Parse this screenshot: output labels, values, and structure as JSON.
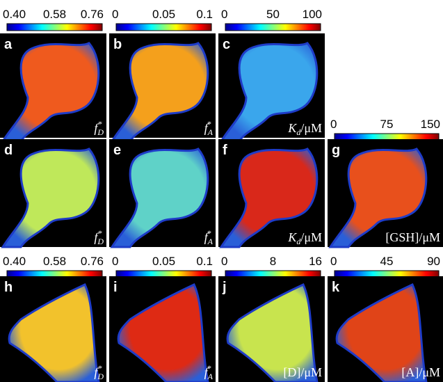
{
  "colorbars": [
    {
      "ticks": [
        "0.40",
        "0.58",
        "0.76"
      ]
    },
    {
      "ticks": [
        "0",
        "0.05",
        "0.1"
      ]
    },
    {
      "ticks": [
        "0",
        "50",
        "100"
      ]
    },
    {
      "ticks": [
        "0",
        "75",
        "150"
      ]
    },
    {
      "ticks": [
        "0.40",
        "0.58",
        "0.76"
      ]
    },
    {
      "ticks": [
        "0",
        "0.05",
        "0.1"
      ]
    },
    {
      "ticks": [
        "0",
        "8",
        "16"
      ]
    },
    {
      "ticks": [
        "0",
        "45",
        "90"
      ]
    }
  ],
  "panels": [
    {
      "letter": "a",
      "label": {
        "base": "f",
        "sub": "D",
        "sup": "*"
      }
    },
    {
      "letter": "b",
      "label": {
        "base": "f",
        "sub": "A",
        "sup": "*"
      }
    },
    {
      "letter": "c",
      "label": {
        "base": "K",
        "sub": "d",
        "rest": "/μM"
      }
    },
    {
      "letter": "d",
      "label": {
        "base": "f",
        "sub": "D",
        "sup": "*"
      }
    },
    {
      "letter": "e",
      "label": {
        "base": "f",
        "sub": "A",
        "sup": "*"
      }
    },
    {
      "letter": "f",
      "label": {
        "base": "K",
        "sub": "d",
        "rest": "/μM"
      }
    },
    {
      "letter": "g",
      "label": {
        "text": "[GSH]/μM"
      }
    },
    {
      "letter": "h",
      "label": {
        "base": "f",
        "sub": "D",
        "sup": "*"
      }
    },
    {
      "letter": "i",
      "label": {
        "base": "f",
        "sub": "A",
        "sup": "*"
      }
    },
    {
      "letter": "j",
      "label": {
        "text": "[D]/μM"
      }
    },
    {
      "letter": "k",
      "label": {
        "text": "[A]/μM"
      }
    }
  ]
}
